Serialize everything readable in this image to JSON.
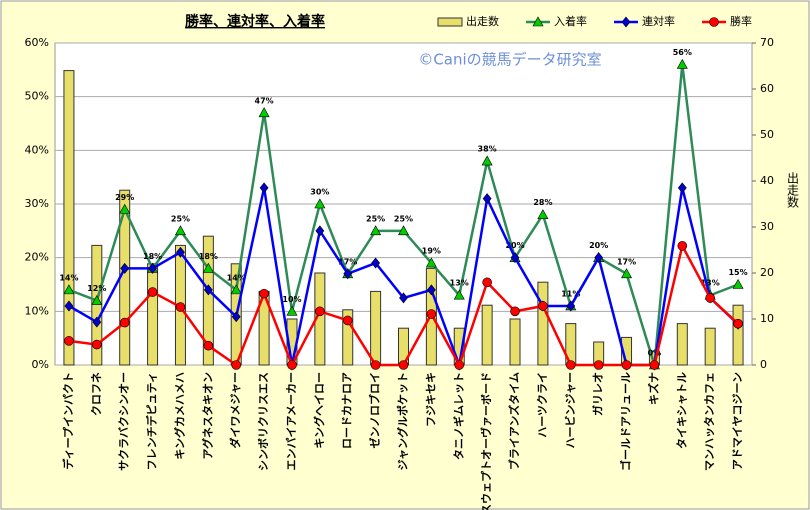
{
  "chart_data": {
    "type": "combo",
    "title": "勝率、連対率、入着率",
    "annotation": "©Caniの競馬データ研究室",
    "y2_label": "出走数",
    "categories": [
      "ディープインパクト",
      "クロフネ",
      "サクラバクシンオー",
      "フレンチデピュティ",
      "キングカメハメハ",
      "アグネスタキオン",
      "ダイワメジャー",
      "シンボリクリスエス",
      "エンパイアメーカー",
      "キングヘイロー",
      "ロードカナロア",
      "ゼンノロブロイ",
      "ジャングルポケット",
      "フジキセキ",
      "タニノギムレット",
      "スウェプトオーヴァーボード",
      "ブライアンズタイム",
      "ハーツクライ",
      "ハービンジャー",
      "ガリレオ",
      "ゴールドアリュール",
      "キズナ",
      "タイキシャトル",
      "マンハッタンカフェ",
      "アドマイヤコジーン"
    ],
    "series": [
      {
        "name": "出走数",
        "type": "bar",
        "axis": "y2",
        "color": "#e8df6a",
        "values": [
          64,
          26,
          38,
          22,
          26,
          28,
          22,
          16,
          10,
          20,
          12,
          16,
          8,
          21,
          8,
          13,
          10,
          18,
          9,
          5,
          6,
          3,
          9,
          8,
          13
        ]
      },
      {
        "name": "入着率",
        "type": "line",
        "marker": "triangle",
        "color": "#2e8b57",
        "marker_color": "#00cc00",
        "values": [
          14,
          12,
          29,
          18,
          25,
          18,
          14,
          47,
          10,
          30,
          17,
          25,
          25,
          19,
          13,
          38,
          20,
          28,
          11,
          20,
          17,
          0,
          56,
          13,
          15
        ],
        "value_labels": [
          "14%",
          "12%",
          "29%",
          "18%",
          "25%",
          "18%",
          "14%",
          "47%",
          "10%",
          "30%",
          "17%",
          "25%",
          "25%",
          "19%",
          "13%",
          "38%",
          "20%",
          "28%",
          "11%",
          "20%",
          "17%",
          "0%",
          "56%",
          "13%",
          "15%"
        ]
      },
      {
        "name": "連対率",
        "type": "line",
        "marker": "diamond",
        "color": "#0000ff",
        "marker_color": "#0000cc",
        "values": [
          11,
          8,
          18,
          18,
          21,
          14,
          9,
          33,
          0,
          25,
          17,
          19,
          12.5,
          14,
          0,
          31,
          20,
          11,
          11,
          20,
          0,
          0,
          33,
          12.5,
          7.6
        ]
      },
      {
        "name": "勝率",
        "type": "line",
        "marker": "circle",
        "color": "#ff0000",
        "marker_color": "#ff0000",
        "values": [
          4.5,
          3.8,
          7.9,
          13.6,
          10.8,
          3.6,
          0,
          13.3,
          0,
          10,
          8.3,
          0,
          0,
          9.5,
          0,
          15.4,
          10,
          11,
          0,
          0,
          0,
          0,
          22.2,
          12.5,
          7.7
        ]
      }
    ],
    "ylim": [
      0,
      60
    ],
    "yticks": [
      {
        "value": 0,
        "label": "0%"
      },
      {
        "value": 10,
        "label": "10%"
      },
      {
        "value": 20,
        "label": "20%"
      },
      {
        "value": 30,
        "label": "30%"
      },
      {
        "value": 40,
        "label": "40%"
      },
      {
        "value": 50,
        "label": "50%"
      },
      {
        "value": 60,
        "label": "60%"
      }
    ],
    "y2lim": [
      0,
      70
    ],
    "y2ticks": [
      0,
      10,
      20,
      30,
      40,
      50,
      60,
      70
    ],
    "grid": true,
    "legend": "top-right"
  }
}
